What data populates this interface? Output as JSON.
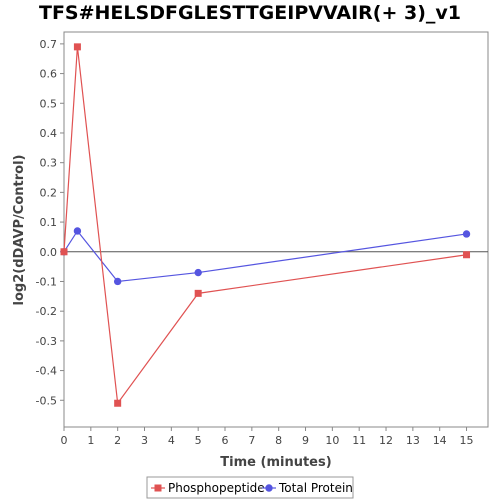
{
  "chart_data": {
    "type": "line",
    "title": "TFS#HELSDFGLESTTGEIPVVAIR(+ 3)_v1",
    "xlabel": "Time (minutes)",
    "ylabel": "log2(dDAVP/Control)",
    "xlim": [
      0,
      15.8
    ],
    "ylim": [
      -0.59,
      0.74
    ],
    "x_ticks": [
      0,
      1,
      2,
      3,
      4,
      5,
      6,
      7,
      8,
      9,
      10,
      11,
      12,
      13,
      14,
      15
    ],
    "y_ticks": [
      -0.5,
      -0.4,
      -0.3,
      -0.2,
      -0.1,
      0.0,
      0.1,
      0.2,
      0.3,
      0.4,
      0.5,
      0.6,
      0.7
    ],
    "y_tick_labels": [
      "-0.5",
      "-0.4",
      "-0.3",
      "-0.2",
      "-0.1",
      "0.0",
      "0.1",
      "0.2",
      "0.3",
      "0.4",
      "0.5",
      "0.6",
      "0.7"
    ],
    "legend_position": "bottom",
    "series": [
      {
        "name": "Phosphopeptide",
        "color": "#e05252",
        "marker": "square",
        "x": [
          0,
          0.5,
          2,
          5,
          15
        ],
        "y": [
          0.0,
          0.69,
          -0.51,
          -0.14,
          -0.01
        ]
      },
      {
        "name": "Total Protein",
        "color": "#5555e0",
        "marker": "circle",
        "x": [
          0,
          0.5,
          2,
          5,
          15
        ],
        "y": [
          0.0,
          0.07,
          -0.1,
          -0.07,
          0.06
        ]
      }
    ]
  }
}
